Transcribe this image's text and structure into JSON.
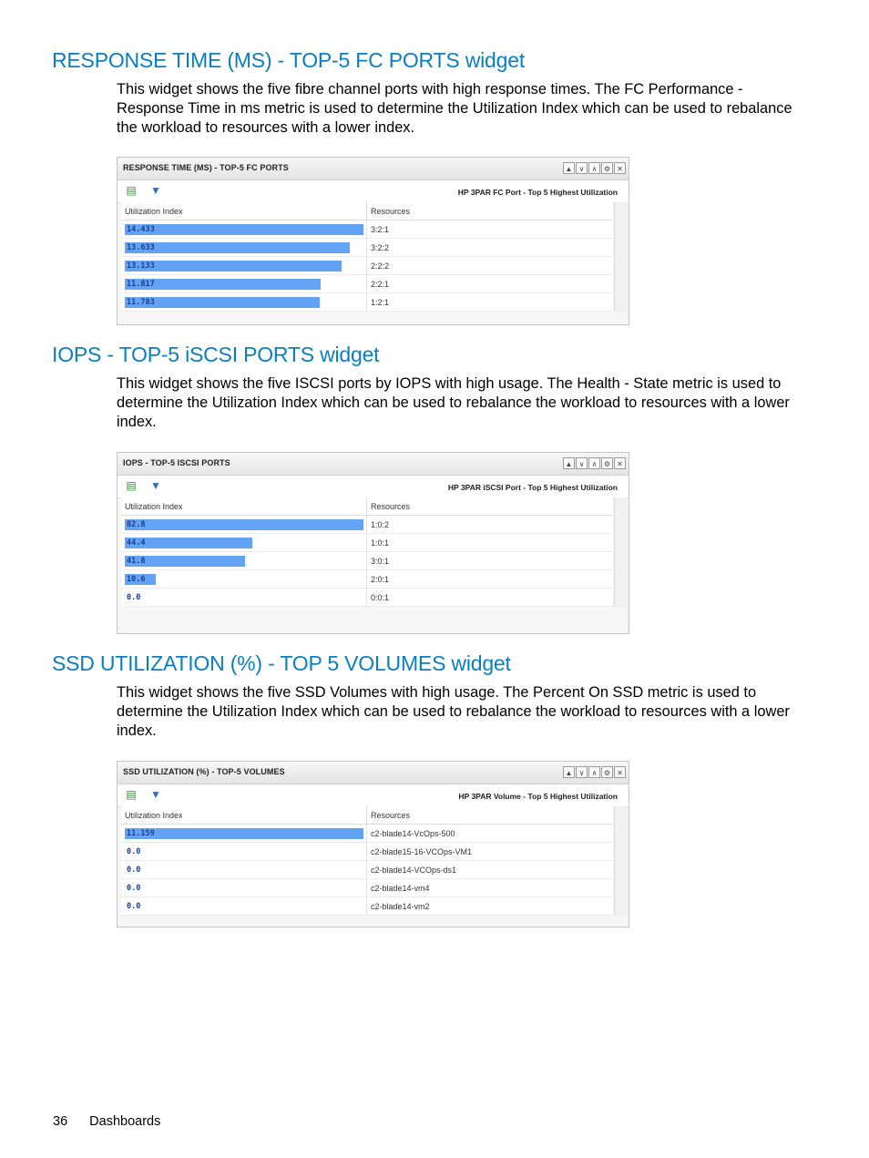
{
  "sections": [
    {
      "heading": "RESPONSE TIME (MS) - TOP-5 FC PORTS widget",
      "description": "This widget shows the five fibre channel ports with high response times. The FC Performance - Response Time in ms metric is used to determine the Utilization Index which can be used to rebalance the workload to resources with a lower index.",
      "widget": {
        "title": "RESPONSE TIME (MS) - TOP-5 FC PORTS",
        "subtitle": "HP 3PAR FC Port - Top 5 Highest Utilization",
        "col_index": "Utilization Index",
        "col_resources": "Resources",
        "bar_max": 14.433,
        "rows": [
          {
            "value": "14.433",
            "num": 14.433,
            "resource": "3:2:1"
          },
          {
            "value": "13.633",
            "num": 13.633,
            "resource": "3:2:2"
          },
          {
            "value": "13.133",
            "num": 13.133,
            "resource": "2:2:2"
          },
          {
            "value": "11.817",
            "num": 11.817,
            "resource": "2:2:1"
          },
          {
            "value": "11.783",
            "num": 11.783,
            "resource": "1:2:1"
          }
        ]
      }
    },
    {
      "heading": "IOPS - TOP-5 iSCSI PORTS widget",
      "description": "This widget shows the five ISCSI ports by IOPS with high usage. The Health - State metric is used to determine the Utilization Index which can be used to rebalance the workload to resources with a lower index.",
      "widget": {
        "title": "IOPS - TOP-5 ISCSI PORTS",
        "subtitle": "HP 3PAR iSCSI Port - Top 5 Highest Utilization",
        "col_index": "Utilization Index",
        "col_resources": "Resources",
        "bar_max": 82.8,
        "rows": [
          {
            "value": "82.8",
            "num": 82.8,
            "resource": "1:0:2"
          },
          {
            "value": "44.4",
            "num": 44.4,
            "resource": "1:0:1"
          },
          {
            "value": "41.8",
            "num": 41.8,
            "resource": "3:0:1"
          },
          {
            "value": "10.6",
            "num": 10.6,
            "resource": "2:0:1"
          },
          {
            "value": "0.0",
            "num": 0.0,
            "resource": "0:0:1"
          }
        ]
      }
    },
    {
      "heading": "SSD UTILIZATION (%) - TOP 5 VOLUMES widget",
      "description": "This widget shows the five SSD Volumes with high usage. The Percent On SSD metric is used to determine the Utilization Index which can be used to rebalance the workload to resources with a lower index.",
      "widget": {
        "title": "SSD UTILIZATION (%) - TOP-5 VOLUMES",
        "subtitle": "HP 3PAR Volume - Top 5 Highest Utilization",
        "col_index": "Utilization Index",
        "col_resources": "Resources",
        "bar_max": 11.159,
        "rows": [
          {
            "value": "11.159",
            "num": 11.159,
            "resource": "c2-blade14-VcOps-500"
          },
          {
            "value": "0.0",
            "num": 0.0,
            "resource": "c2-blade15-16-VCOps-VM1"
          },
          {
            "value": "0.0",
            "num": 0.0,
            "resource": "c2-blade14-VCOps-ds1"
          },
          {
            "value": "0.0",
            "num": 0.0,
            "resource": "c2-blade14-vm4"
          },
          {
            "value": "0.0",
            "num": 0.0,
            "resource": "c2-blade14-vm2"
          }
        ]
      }
    }
  ],
  "footer": {
    "page_number": "36",
    "chapter": "Dashboards"
  }
}
